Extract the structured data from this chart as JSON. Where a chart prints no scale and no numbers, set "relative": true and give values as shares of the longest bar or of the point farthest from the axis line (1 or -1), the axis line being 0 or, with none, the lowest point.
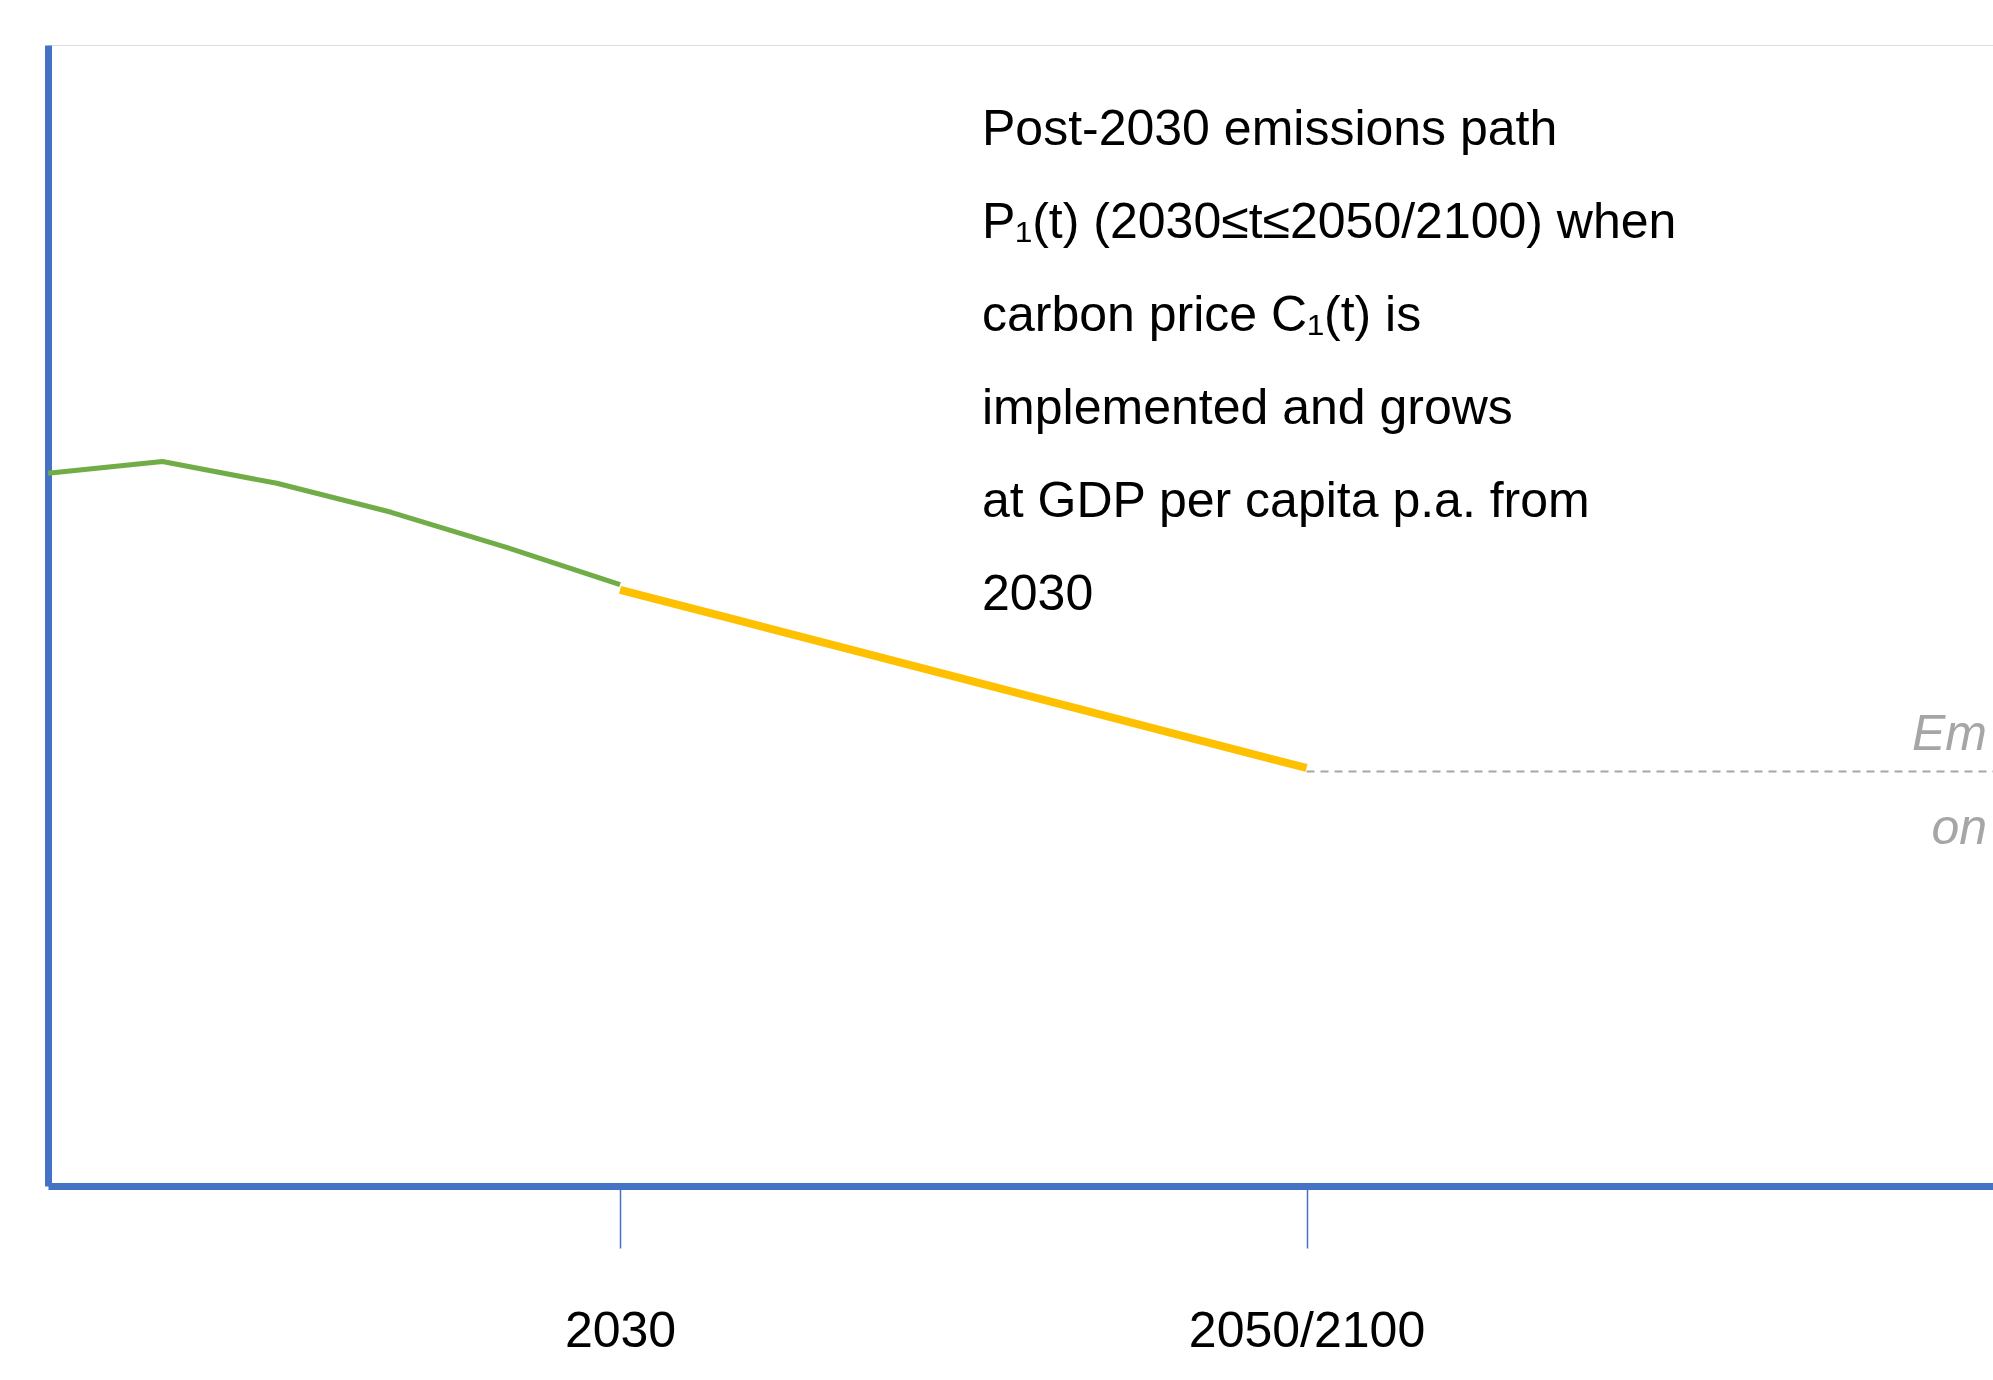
{
  "chart_data": {
    "type": "line",
    "relative": true,
    "categories": [
      null,
      null,
      null,
      null,
      null,
      "2030",
      null,
      null,
      null,
      null,
      null,
      "2050/2100",
      null,
      null,
      null,
      null,
      null,
      null
    ],
    "series": [
      {
        "color": "#70ad47",
        "values": [
          0.984,
          1,
          0.97,
          0.93,
          0.882,
          0.83,
          null,
          null,
          null,
          null,
          null,
          null,
          null,
          null,
          null,
          null,
          null,
          null
        ]
      },
      {
        "color": "#ffc000",
        "values": [
          null,
          null,
          null,
          null,
          null,
          0.823,
          0.782,
          0.741,
          0.7,
          0.659,
          0.618,
          0.577,
          null,
          null,
          null,
          null,
          null,
          null
        ]
      },
      {
        "color": "#a6a6a6",
        "line_style": "dashed",
        "values": [
          null,
          null,
          null,
          null,
          null,
          null,
          null,
          null,
          null,
          null,
          null,
          0.572,
          0.572,
          0.572,
          0.572,
          0.572,
          0.572,
          0.572
        ]
      }
    ],
    "annotations": [
      "Post-2030 emissions path\nP₁(t) (2030≤t≤2050/2100) when\ncarbon price C₁(t) is\nimplemented and grows\nat GDP per capita p.a. from\n2030",
      "Em",
      "on"
    ]
  }
}
